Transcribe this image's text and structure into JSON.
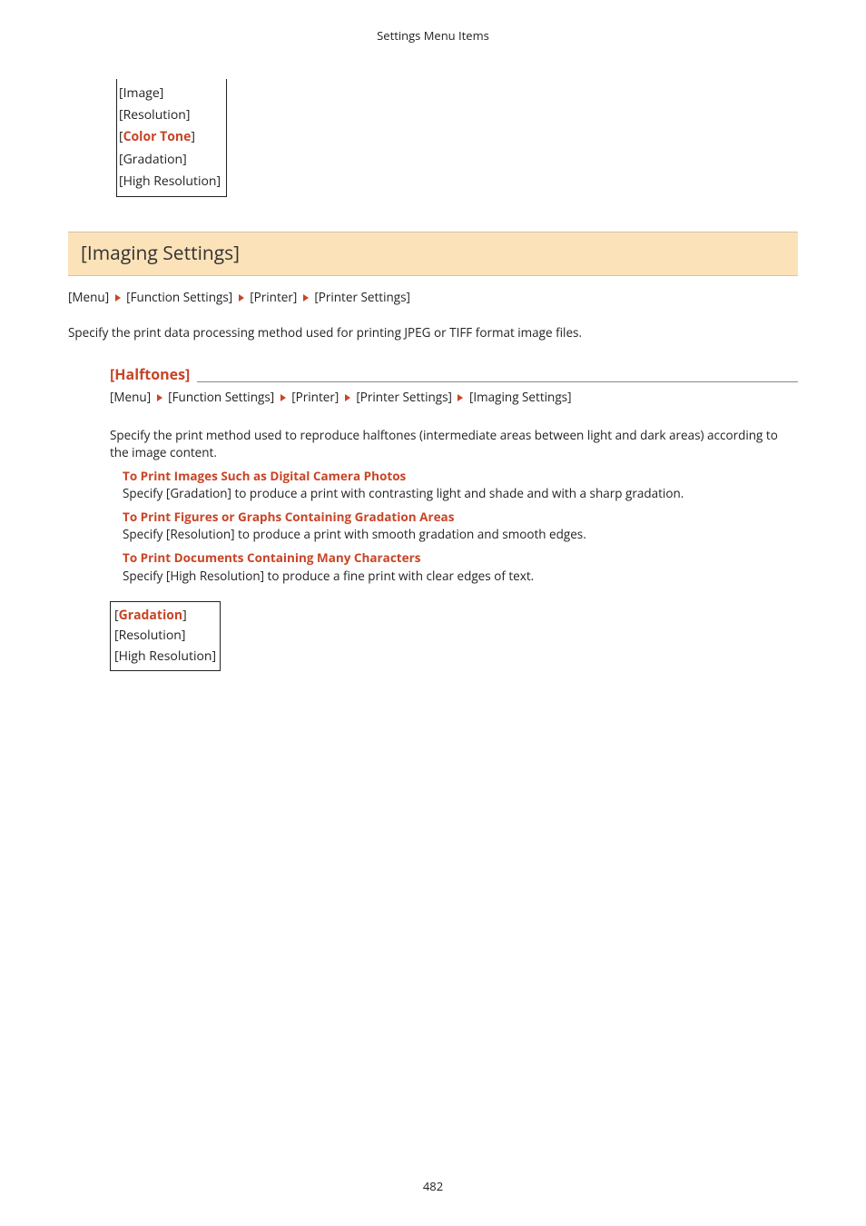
{
  "header_text": "Settings Menu Items",
  "top_box": {
    "parent": "[Image]",
    "items": [
      "[Resolution]",
      "[Color Tone]",
      "[Gradation]",
      "[High Resolution]"
    ],
    "highlighted_index": 1
  },
  "section": {
    "title": "[Imaging Settings]",
    "breadcrumb": [
      "[Menu]",
      "[Function Settings]",
      "[Printer]",
      "[Printer Settings]"
    ],
    "description": "Specify the print data processing method used for printing JPEG or TIFF format image files."
  },
  "subsection": {
    "title": "[Halftones]",
    "breadcrumb": [
      "[Menu]",
      "[Function Settings]",
      "[Printer]",
      "[Printer Settings]",
      "[Imaging Settings]"
    ],
    "body": "Specify the print method used to reproduce halftones (intermediate areas between light and dark areas) according to the image content.",
    "scenarios": [
      {
        "title": "To Print Images Such as Digital Camera Photos",
        "desc": "Specify [Gradation] to produce a print with contrasting light and shade and with a sharp gradation."
      },
      {
        "title": "To Print Figures or Graphs Containing Gradation Areas",
        "desc": "Specify [Resolution] to produce a print with smooth gradation and smooth edges."
      },
      {
        "title": "To Print Documents Containing Many Characters",
        "desc": "Specify [High Resolution] to produce a fine print with clear edges of text."
      }
    ],
    "options": [
      "[Gradation]",
      "[Resolution]",
      "[High Resolution]"
    ],
    "options_highlighted_index": 0
  },
  "page_number": "482"
}
